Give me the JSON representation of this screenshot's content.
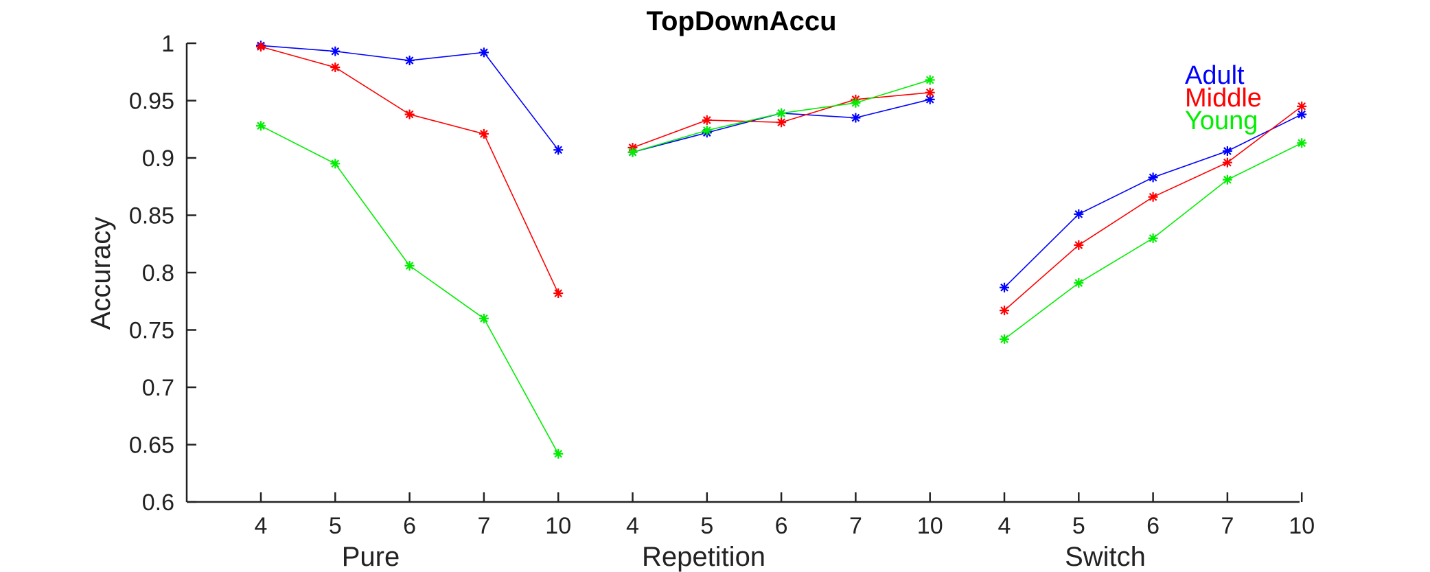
{
  "chart_data": {
    "type": "line",
    "title": "TopDownAccu",
    "xlabel": "",
    "ylabel": "Accuracy",
    "ylim": [
      0.6,
      1.0
    ],
    "yticks": [
      "0.6",
      "0.65",
      "0.7",
      "0.75",
      "0.8",
      "0.85",
      "0.9",
      "0.95",
      "1"
    ],
    "ytick_values": [
      0.6,
      0.65,
      0.7,
      0.75,
      0.8,
      0.85,
      0.9,
      0.95,
      1.0
    ],
    "groups": [
      {
        "label": "Pure",
        "categories": [
          "4",
          "5",
          "6",
          "7",
          "10"
        ]
      },
      {
        "label": "Repetition",
        "categories": [
          "4",
          "5",
          "6",
          "7",
          "10"
        ]
      },
      {
        "label": "Switch",
        "categories": [
          "4",
          "5",
          "6",
          "7",
          "10"
        ]
      }
    ],
    "legend_position": "top-right",
    "series": [
      {
        "name": "Adult",
        "color": "#0000ff",
        "groups": [
          [
            0.998,
            0.993,
            0.985,
            0.992,
            0.907
          ],
          [
            0.905,
            0.922,
            0.939,
            0.935,
            0.951
          ],
          [
            0.787,
            0.851,
            0.883,
            0.906,
            0.938
          ]
        ]
      },
      {
        "name": "Middle",
        "color": "#ff0000",
        "groups": [
          [
            0.997,
            0.979,
            0.938,
            0.921,
            0.782
          ],
          [
            0.909,
            0.933,
            0.931,
            0.951,
            0.957
          ],
          [
            0.767,
            0.824,
            0.866,
            0.896,
            0.945
          ]
        ]
      },
      {
        "name": "Young",
        "color": "#00ee00",
        "groups": [
          [
            0.928,
            0.895,
            0.806,
            0.76,
            0.642
          ],
          [
            0.905,
            0.924,
            0.939,
            0.948,
            0.968
          ],
          [
            0.742,
            0.791,
            0.83,
            0.881,
            0.913
          ]
        ]
      }
    ]
  }
}
